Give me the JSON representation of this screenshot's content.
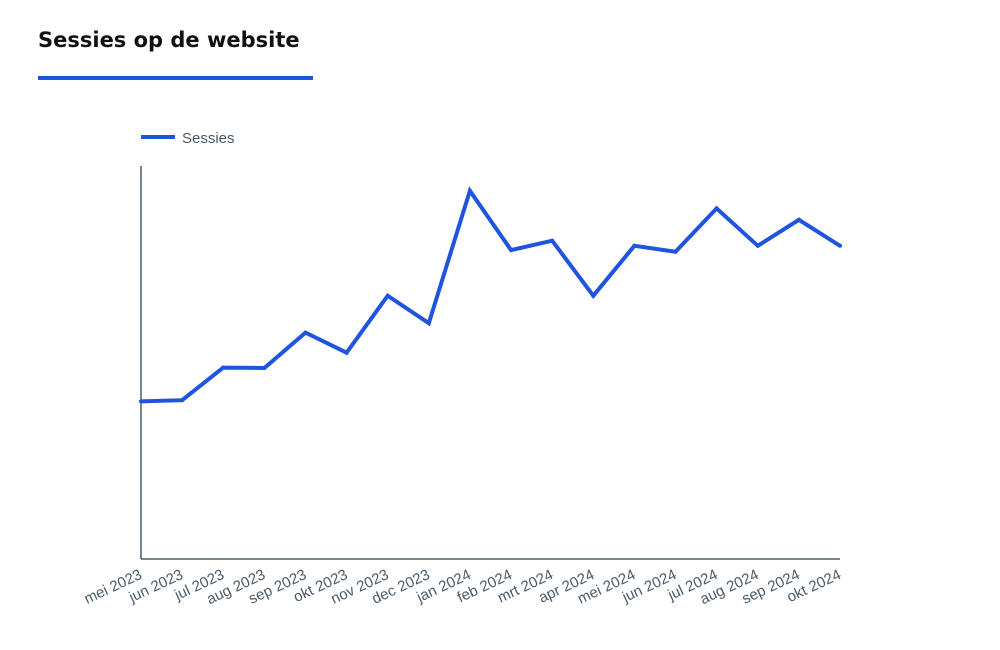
{
  "page": {
    "title": "Sessies op de website",
    "accent_color": "#1f54de"
  },
  "chart_data": {
    "type": "line",
    "title": "Sessies op de website",
    "xlabel": "",
    "ylabel": "",
    "x": [
      "mei 2023",
      "jun 2023",
      "jul 2023",
      "aug 2023",
      "sep 2023",
      "okt 2023",
      "nov 2023",
      "dec 2023",
      "jan 2024",
      "feb 2024",
      "mrt 2024",
      "apr 2024",
      "mei 2024",
      "jun 2024",
      "jul 2024",
      "aug 2024",
      "sep 2024",
      "okt 2024"
    ],
    "series": [
      {
        "name": "Sessies",
        "color": "#1f54de",
        "values": [
          40.1,
          40.4,
          48.7,
          48.6,
          57.6,
          52.5,
          67.0,
          60.0,
          93.7,
          78.6,
          81.0,
          67.0,
          79.7,
          78.2,
          89.2,
          79.7,
          86.3,
          79.7
        ]
      }
    ],
    "ylim": [
      0,
      100
    ],
    "y_axis_labels_shown": false,
    "grid": false,
    "legend": "top-left"
  }
}
